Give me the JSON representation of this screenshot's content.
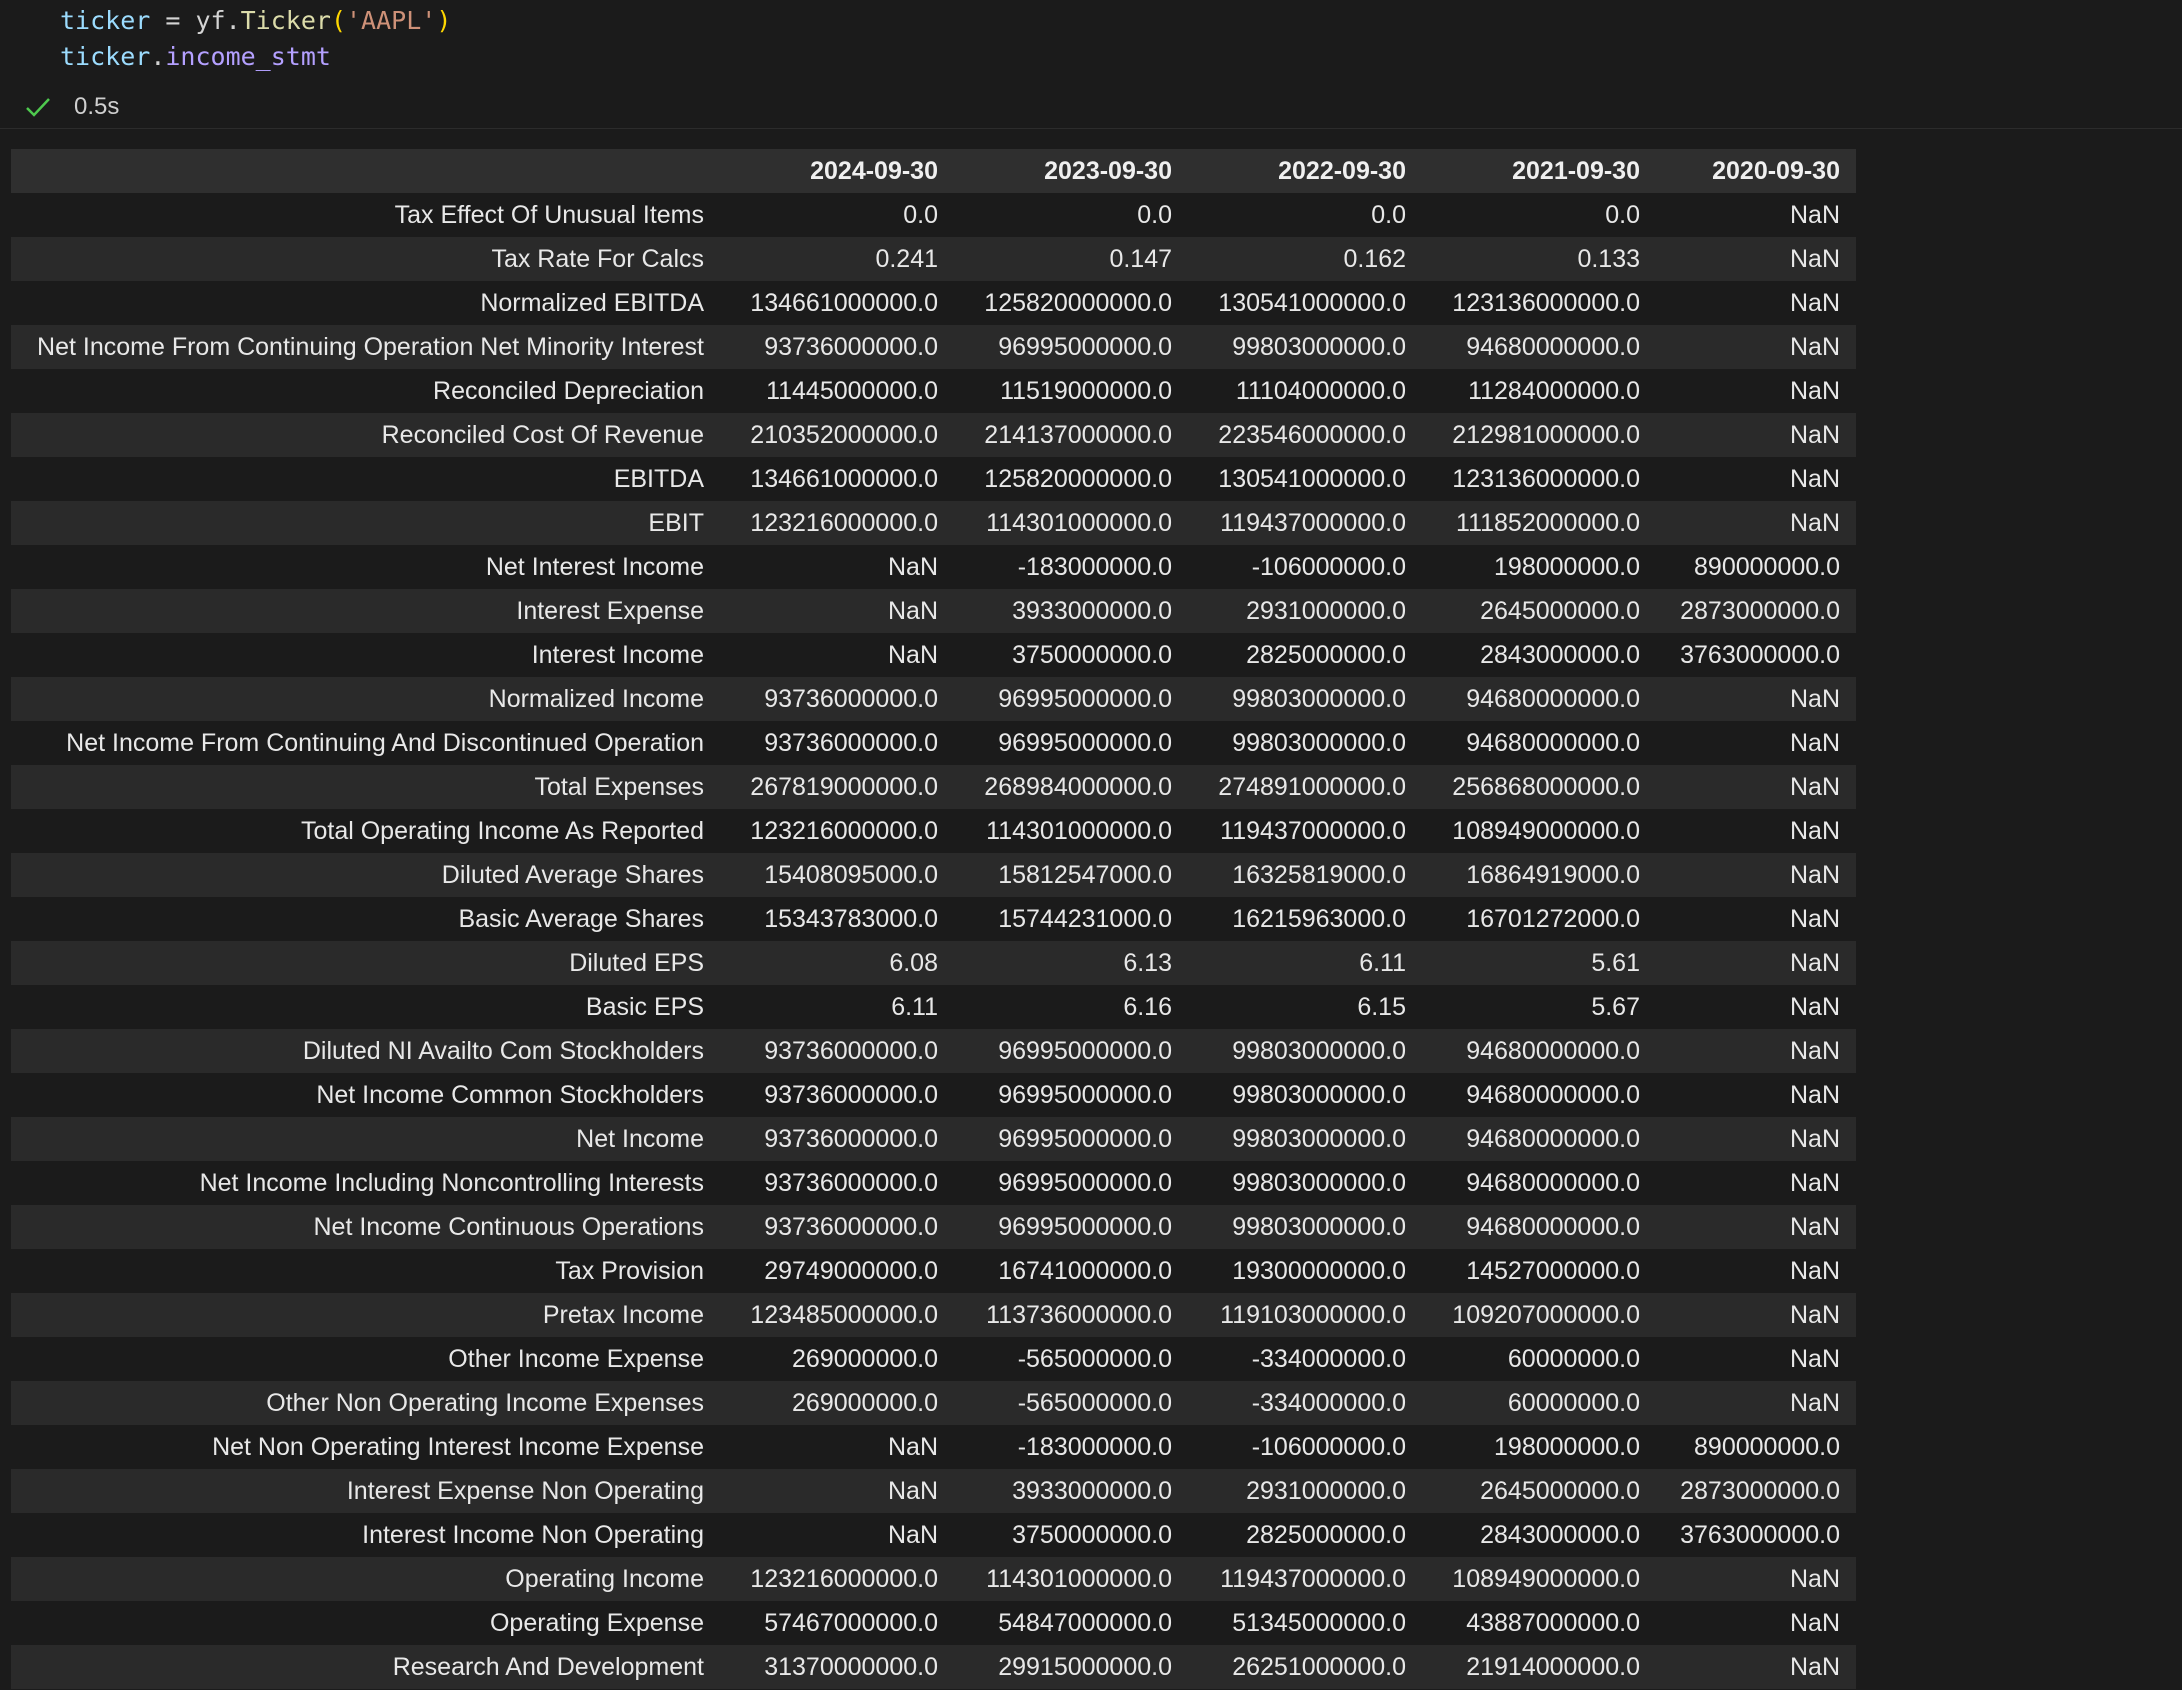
{
  "code": [
    [
      {
        "text": "ticker",
        "color": "#9cdcfe"
      },
      {
        "text": " = yf.",
        "color": "#d4d4d4"
      },
      {
        "text": "Ticker",
        "color": "#dcdcaa"
      },
      {
        "text": "(",
        "color": "#ffd700"
      },
      {
        "text": "'AAPL'",
        "color": "#ce9178"
      },
      {
        "text": ")",
        "color": "#ffd700"
      }
    ],
    [
      {
        "text": "ticker",
        "color": "#9cdcfe"
      },
      {
        "text": ".",
        "color": "#d4d4d4"
      },
      {
        "text": "income_stmt",
        "color": "#b4a0ff"
      }
    ]
  ],
  "status": {
    "time": "0.5s"
  },
  "table": {
    "columns": [
      "2024-09-30",
      "2023-09-30",
      "2022-09-30",
      "2021-09-30",
      "2020-09-30"
    ],
    "rows": [
      [
        "Tax Effect Of Unusual Items",
        "0.0",
        "0.0",
        "0.0",
        "0.0",
        "NaN"
      ],
      [
        "Tax Rate For Calcs",
        "0.241",
        "0.147",
        "0.162",
        "0.133",
        "NaN"
      ],
      [
        "Normalized EBITDA",
        "134661000000.0",
        "125820000000.0",
        "130541000000.0",
        "123136000000.0",
        "NaN"
      ],
      [
        "Net Income From Continuing Operation Net Minority Interest",
        "93736000000.0",
        "96995000000.0",
        "99803000000.0",
        "94680000000.0",
        "NaN"
      ],
      [
        "Reconciled Depreciation",
        "11445000000.0",
        "11519000000.0",
        "11104000000.0",
        "11284000000.0",
        "NaN"
      ],
      [
        "Reconciled Cost Of Revenue",
        "210352000000.0",
        "214137000000.0",
        "223546000000.0",
        "212981000000.0",
        "NaN"
      ],
      [
        "EBITDA",
        "134661000000.0",
        "125820000000.0",
        "130541000000.0",
        "123136000000.0",
        "NaN"
      ],
      [
        "EBIT",
        "123216000000.0",
        "114301000000.0",
        "119437000000.0",
        "111852000000.0",
        "NaN"
      ],
      [
        "Net Interest Income",
        "NaN",
        "-183000000.0",
        "-106000000.0",
        "198000000.0",
        "890000000.0"
      ],
      [
        "Interest Expense",
        "NaN",
        "3933000000.0",
        "2931000000.0",
        "2645000000.0",
        "2873000000.0"
      ],
      [
        "Interest Income",
        "NaN",
        "3750000000.0",
        "2825000000.0",
        "2843000000.0",
        "3763000000.0"
      ],
      [
        "Normalized Income",
        "93736000000.0",
        "96995000000.0",
        "99803000000.0",
        "94680000000.0",
        "NaN"
      ],
      [
        "Net Income From Continuing And Discontinued Operation",
        "93736000000.0",
        "96995000000.0",
        "99803000000.0",
        "94680000000.0",
        "NaN"
      ],
      [
        "Total Expenses",
        "267819000000.0",
        "268984000000.0",
        "274891000000.0",
        "256868000000.0",
        "NaN"
      ],
      [
        "Total Operating Income As Reported",
        "123216000000.0",
        "114301000000.0",
        "119437000000.0",
        "108949000000.0",
        "NaN"
      ],
      [
        "Diluted Average Shares",
        "15408095000.0",
        "15812547000.0",
        "16325819000.0",
        "16864919000.0",
        "NaN"
      ],
      [
        "Basic Average Shares",
        "15343783000.0",
        "15744231000.0",
        "16215963000.0",
        "16701272000.0",
        "NaN"
      ],
      [
        "Diluted EPS",
        "6.08",
        "6.13",
        "6.11",
        "5.61",
        "NaN"
      ],
      [
        "Basic EPS",
        "6.11",
        "6.16",
        "6.15",
        "5.67",
        "NaN"
      ],
      [
        "Diluted NI Availto Com Stockholders",
        "93736000000.0",
        "96995000000.0",
        "99803000000.0",
        "94680000000.0",
        "NaN"
      ],
      [
        "Net Income Common Stockholders",
        "93736000000.0",
        "96995000000.0",
        "99803000000.0",
        "94680000000.0",
        "NaN"
      ],
      [
        "Net Income",
        "93736000000.0",
        "96995000000.0",
        "99803000000.0",
        "94680000000.0",
        "NaN"
      ],
      [
        "Net Income Including Noncontrolling Interests",
        "93736000000.0",
        "96995000000.0",
        "99803000000.0",
        "94680000000.0",
        "NaN"
      ],
      [
        "Net Income Continuous Operations",
        "93736000000.0",
        "96995000000.0",
        "99803000000.0",
        "94680000000.0",
        "NaN"
      ],
      [
        "Tax Provision",
        "29749000000.0",
        "16741000000.0",
        "19300000000.0",
        "14527000000.0",
        "NaN"
      ],
      [
        "Pretax Income",
        "123485000000.0",
        "113736000000.0",
        "119103000000.0",
        "109207000000.0",
        "NaN"
      ],
      [
        "Other Income Expense",
        "269000000.0",
        "-565000000.0",
        "-334000000.0",
        "60000000.0",
        "NaN"
      ],
      [
        "Other Non Operating Income Expenses",
        "269000000.0",
        "-565000000.0",
        "-334000000.0",
        "60000000.0",
        "NaN"
      ],
      [
        "Net Non Operating Interest Income Expense",
        "NaN",
        "-183000000.0",
        "-106000000.0",
        "198000000.0",
        "890000000.0"
      ],
      [
        "Interest Expense Non Operating",
        "NaN",
        "3933000000.0",
        "2931000000.0",
        "2645000000.0",
        "2873000000.0"
      ],
      [
        "Interest Income Non Operating",
        "NaN",
        "3750000000.0",
        "2825000000.0",
        "2843000000.0",
        "3763000000.0"
      ],
      [
        "Operating Income",
        "123216000000.0",
        "114301000000.0",
        "119437000000.0",
        "108949000000.0",
        "NaN"
      ],
      [
        "Operating Expense",
        "57467000000.0",
        "54847000000.0",
        "51345000000.0",
        "43887000000.0",
        "NaN"
      ],
      [
        "Research And Development",
        "31370000000.0",
        "29915000000.0",
        "26251000000.0",
        "21914000000.0",
        "NaN"
      ]
    ]
  }
}
